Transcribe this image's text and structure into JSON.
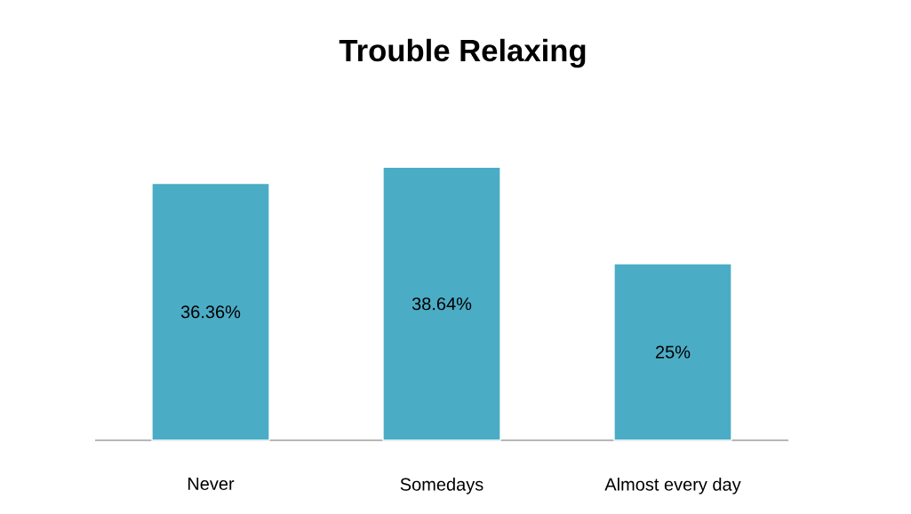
{
  "chart_data": {
    "type": "bar",
    "title": "Trouble Relaxing",
    "categories": [
      "Never",
      "Somedays",
      "Almost every day"
    ],
    "values": [
      36.36,
      38.64,
      25
    ],
    "color": "#4bacc6",
    "value_labels": [
      "36.36%",
      "38.64%",
      "25%"
    ]
  }
}
